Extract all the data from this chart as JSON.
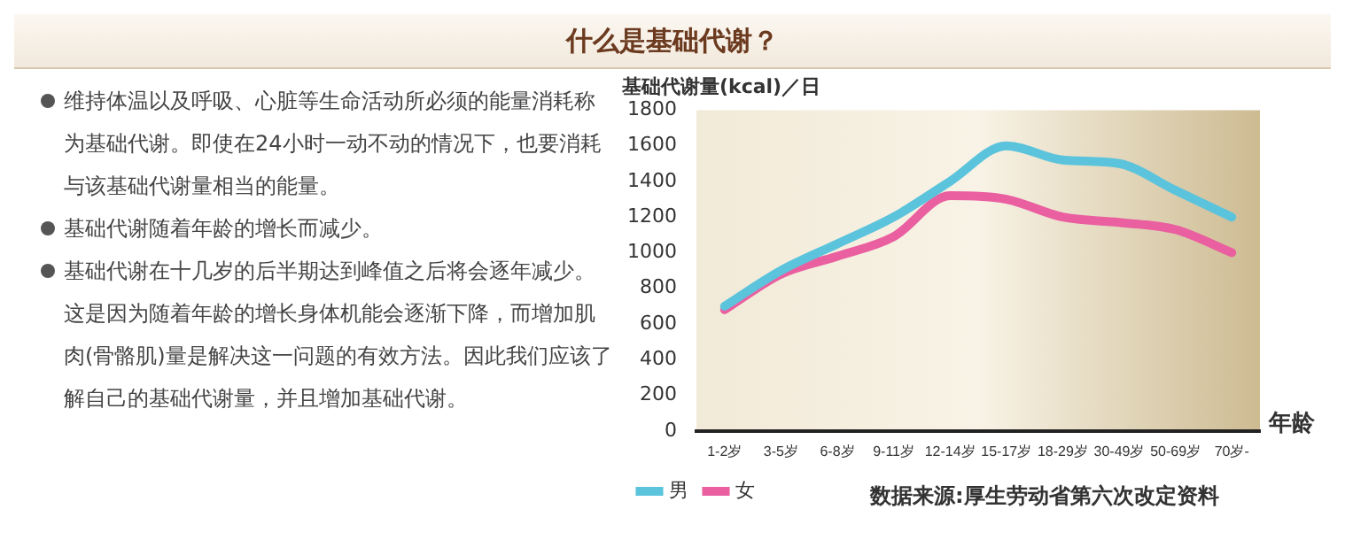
{
  "chart_data": {
    "type": "line",
    "title": "什么是基础代谢？",
    "ylabel": "基础代谢量(kcal)／日",
    "xlabel": "年龄",
    "categories": [
      "1-2岁",
      "3-5岁",
      "6-8岁",
      "9-11岁",
      "12-14岁",
      "15-17岁",
      "18-29岁",
      "30-49岁",
      "50-69岁",
      "70岁-"
    ],
    "series": [
      {
        "name": "男",
        "color": "#5bc4dc",
        "values": [
          700,
          900,
          1050,
          1200,
          1400,
          1600,
          1520,
          1500,
          1350,
          1200
        ]
      },
      {
        "name": "女",
        "color": "#ea5fa0",
        "values": [
          680,
          880,
          980,
          1090,
          1320,
          1300,
          1200,
          1170,
          1130,
          1000
        ]
      }
    ],
    "ylim": [
      0,
      1800
    ],
    "yticks": [
      0,
      200,
      400,
      600,
      800,
      1000,
      1200,
      1400,
      1600,
      1800
    ],
    "grid": false,
    "legend": "bottom",
    "marker": "none",
    "line_style": "solid",
    "annotations": [
      "维持体温以及呼吸、心脏等生命活动所必须的能量消耗称为基础代谢。即使在24小时一动不动的情况下，也要消耗与该基础代谢量相当的能量。",
      "基础代谢随着年龄的增长而减少。",
      "基础代谢在十几岁的后半期达到峰值之后将会逐年减少。这是因为随着年龄的增长身体机能会逐渐下降，而增加肌肉(骨骼肌)量是解决这一问题的有效方法。因此我们应该了解自己的基础代谢量，并且增加基础代谢。",
      "数据来源:厚生劳动省第六次改定资料"
    ]
  }
}
